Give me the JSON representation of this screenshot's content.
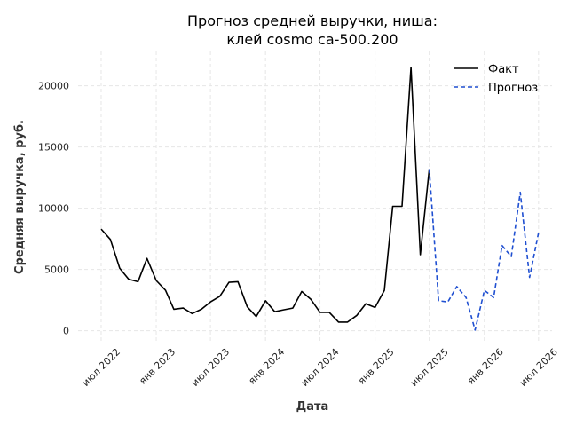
{
  "chart_data": {
    "type": "line",
    "title_line1": "Прогноз средней выручки, ниша:",
    "title_line2": "клей cosmo ca-500.200",
    "xlabel": "Дата",
    "ylabel": "Средняя выручка, руб.",
    "ylim": [
      -900,
      22800
    ],
    "xlim": [
      "2022-04-15",
      "2026-08-15"
    ],
    "yticks": [
      0,
      5000,
      10000,
      15000,
      20000
    ],
    "xticks": [
      {
        "date": "2022-07-01",
        "label": "июл 2022"
      },
      {
        "date": "2023-01-01",
        "label": "янв 2023"
      },
      {
        "date": "2023-07-01",
        "label": "июл 2023"
      },
      {
        "date": "2024-01-01",
        "label": "янв 2024"
      },
      {
        "date": "2024-07-01",
        "label": "июл 2024"
      },
      {
        "date": "2025-01-01",
        "label": "янв 2025"
      },
      {
        "date": "2025-07-01",
        "label": "июл 2025"
      },
      {
        "date": "2026-01-01",
        "label": "янв 2026"
      },
      {
        "date": "2026-07-01",
        "label": "июл 2026"
      }
    ],
    "grid": true,
    "legend_position": "top-right",
    "series": [
      {
        "name": "Факт",
        "color": "#000000",
        "style": "solid",
        "points": [
          [
            "2022-07-01",
            8300
          ],
          [
            "2022-08-01",
            7450
          ],
          [
            "2022-09-01",
            5100
          ],
          [
            "2022-10-01",
            4200
          ],
          [
            "2022-11-01",
            4000
          ],
          [
            "2022-12-01",
            5900
          ],
          [
            "2023-01-01",
            4100
          ],
          [
            "2023-02-01",
            3300
          ],
          [
            "2023-03-01",
            1750
          ],
          [
            "2023-04-01",
            1850
          ],
          [
            "2023-05-01",
            1400
          ],
          [
            "2023-06-01",
            1750
          ],
          [
            "2023-07-01",
            2350
          ],
          [
            "2023-08-01",
            2800
          ],
          [
            "2023-09-01",
            3950
          ],
          [
            "2023-10-01",
            4000
          ],
          [
            "2023-11-01",
            1950
          ],
          [
            "2023-12-01",
            1150
          ],
          [
            "2024-01-01",
            2450
          ],
          [
            "2024-02-01",
            1550
          ],
          [
            "2024-03-01",
            1700
          ],
          [
            "2024-04-01",
            1850
          ],
          [
            "2024-05-01",
            3200
          ],
          [
            "2024-06-01",
            2550
          ],
          [
            "2024-07-01",
            1500
          ],
          [
            "2024-08-01",
            1500
          ],
          [
            "2024-09-01",
            700
          ],
          [
            "2024-10-01",
            700
          ],
          [
            "2024-11-01",
            1250
          ],
          [
            "2024-12-01",
            2200
          ],
          [
            "2025-01-01",
            1900
          ],
          [
            "2025-02-01",
            3300
          ],
          [
            "2025-03-01",
            10150
          ],
          [
            "2025-04-01",
            10150
          ],
          [
            "2025-05-01",
            21500
          ],
          [
            "2025-06-01",
            6200
          ],
          [
            "2025-07-01",
            13200
          ]
        ]
      },
      {
        "name": "Прогноз",
        "color": "#1f4fd1",
        "style": "dashed",
        "points": [
          [
            "2025-07-01",
            13200
          ],
          [
            "2025-08-01",
            2450
          ],
          [
            "2025-09-01",
            2350
          ],
          [
            "2025-10-01",
            3600
          ],
          [
            "2025-11-01",
            2700
          ],
          [
            "2025-12-01",
            50
          ],
          [
            "2026-01-01",
            3300
          ],
          [
            "2026-02-01",
            2700
          ],
          [
            "2026-03-01",
            6950
          ],
          [
            "2026-04-01",
            6050
          ],
          [
            "2026-05-01",
            11300
          ],
          [
            "2026-06-01",
            4350
          ],
          [
            "2026-07-01",
            8000
          ]
        ]
      }
    ]
  }
}
